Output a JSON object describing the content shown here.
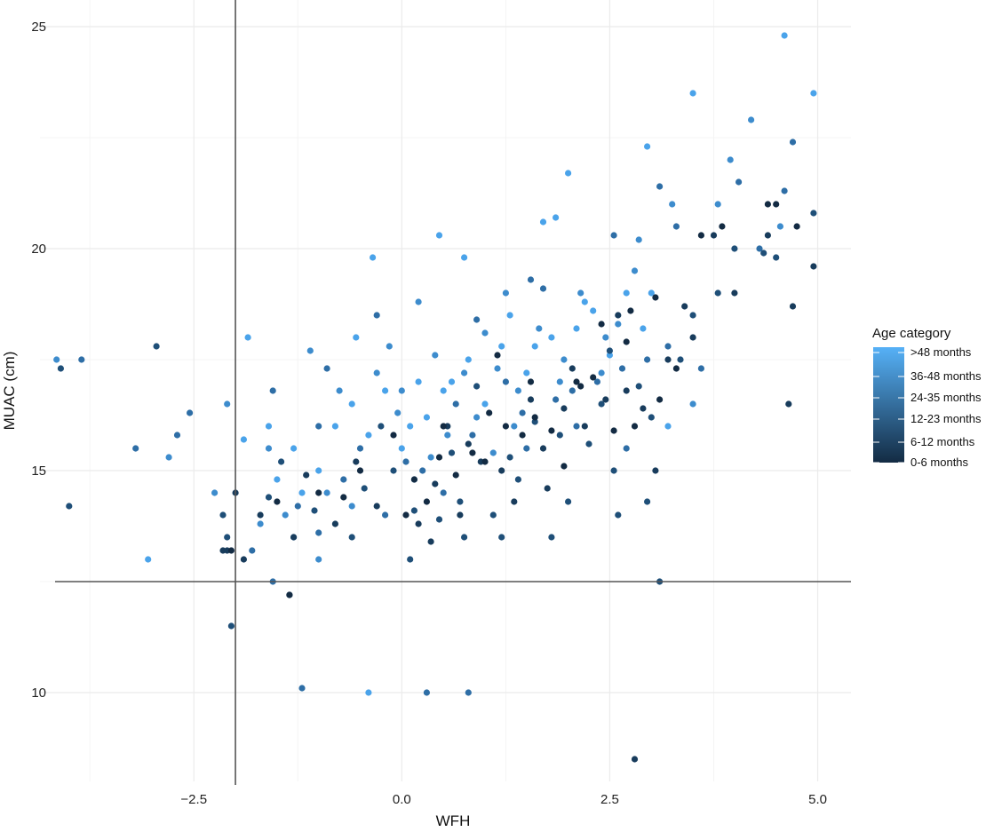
{
  "chart_data": {
    "type": "scatter",
    "xlabel": "WFH",
    "ylabel": "MUAC (cm)",
    "xlim": [
      -4.35,
      5.4
    ],
    "ylim": [
      8.0,
      25.6
    ],
    "x_ticks": [
      -2.5,
      0.0,
      2.5,
      5.0
    ],
    "x_tick_labels": [
      "−2.5",
      "0.0",
      "2.5",
      "5.0"
    ],
    "y_ticks": [
      10,
      15,
      20,
      25
    ],
    "y_tick_labels": [
      "10",
      "15",
      "20",
      "25"
    ],
    "grid": true,
    "reference_lines": {
      "vertical_x": -2.0,
      "horizontal_y": 12.5
    },
    "legend": {
      "title": "Age category",
      "placement": "right",
      "labels": [
        ">48 months",
        "36-48 months",
        "24-35 months",
        "12-23 months",
        "6-12 months",
        "0-6 months"
      ],
      "gradient": [
        "#56b1f7",
        "#132b43"
      ]
    },
    "series": [
      {
        "name": ">48 months",
        "color": "#4aa3ea",
        "points": [
          [
            -3.05,
            13.0
          ],
          [
            -0.4,
            10.0
          ],
          [
            -0.35,
            19.8
          ],
          [
            2.95,
            22.3
          ],
          [
            2.0,
            21.7
          ],
          [
            1.85,
            20.7
          ],
          [
            0.45,
            20.3
          ],
          [
            -1.85,
            18.0
          ],
          [
            -1.6,
            16.0
          ],
          [
            -1.9,
            15.7
          ],
          [
            3.2,
            16.0
          ],
          [
            0.75,
            19.8
          ],
          [
            1.7,
            20.6
          ],
          [
            2.7,
            19.0
          ],
          [
            -0.55,
            18.0
          ],
          [
            3.0,
            19.0
          ],
          [
            -0.6,
            16.5
          ],
          [
            -1.3,
            15.5
          ],
          [
            -0.2,
            16.8
          ],
          [
            0.2,
            17.0
          ],
          [
            0.3,
            16.2
          ],
          [
            0.8,
            17.5
          ],
          [
            1.2,
            17.8
          ],
          [
            1.5,
            17.2
          ],
          [
            2.1,
            18.2
          ],
          [
            2.3,
            18.6
          ],
          [
            -1.0,
            15.0
          ],
          [
            -0.8,
            16.0
          ],
          [
            0.0,
            15.5
          ],
          [
            0.5,
            16.8
          ],
          [
            1.0,
            16.5
          ],
          [
            1.3,
            18.5
          ],
          [
            1.8,
            18.0
          ],
          [
            2.5,
            17.6
          ],
          [
            -1.5,
            14.8
          ],
          [
            -1.2,
            14.5
          ],
          [
            -0.4,
            15.8
          ],
          [
            0.1,
            16.0
          ],
          [
            0.6,
            17.0
          ],
          [
            1.6,
            17.8
          ],
          [
            2.2,
            18.8
          ],
          [
            2.9,
            18.2
          ],
          [
            4.6,
            24.8
          ],
          [
            3.5,
            23.5
          ],
          [
            4.95,
            23.5
          ]
        ]
      },
      {
        "name": "36-48 months",
        "color": "#3d8ccd",
        "points": [
          [
            -4.15,
            17.5
          ],
          [
            -2.1,
            16.5
          ],
          [
            -2.8,
            15.3
          ],
          [
            0.2,
            18.8
          ],
          [
            1.25,
            19.0
          ],
          [
            2.85,
            20.2
          ],
          [
            3.25,
            21.0
          ],
          [
            -0.15,
            17.8
          ],
          [
            -1.4,
            14.0
          ],
          [
            -0.9,
            14.5
          ],
          [
            0.35,
            15.3
          ],
          [
            0.9,
            16.2
          ],
          [
            1.4,
            16.8
          ],
          [
            1.9,
            17.0
          ],
          [
            2.4,
            17.2
          ],
          [
            -1.1,
            17.7
          ],
          [
            -0.75,
            16.8
          ],
          [
            -0.05,
            16.3
          ],
          [
            0.55,
            15.8
          ],
          [
            1.15,
            17.3
          ],
          [
            1.65,
            18.2
          ],
          [
            2.15,
            19.0
          ],
          [
            2.6,
            18.3
          ],
          [
            -1.7,
            13.8
          ],
          [
            -1.3,
            13.5
          ],
          [
            -0.6,
            14.2
          ],
          [
            0.0,
            16.8
          ],
          [
            0.75,
            17.2
          ],
          [
            1.35,
            16.0
          ],
          [
            1.95,
            17.5
          ],
          [
            2.45,
            18.0
          ],
          [
            3.5,
            16.5
          ],
          [
            4.2,
            22.9
          ],
          [
            4.55,
            20.5
          ],
          [
            3.8,
            21.0
          ],
          [
            -1.0,
            13.0
          ],
          [
            0.4,
            17.6
          ],
          [
            1.0,
            18.1
          ],
          [
            2.8,
            19.5
          ],
          [
            3.95,
            22.0
          ],
          [
            -2.25,
            14.5
          ],
          [
            -1.6,
            15.5
          ],
          [
            -0.3,
            17.2
          ],
          [
            0.15,
            14.8
          ],
          [
            1.1,
            15.4
          ]
        ]
      },
      {
        "name": "24-35 months",
        "color": "#2e6ea6",
        "points": [
          [
            -3.85,
            17.5
          ],
          [
            -2.55,
            16.3
          ],
          [
            -3.2,
            15.5
          ],
          [
            -2.7,
            15.8
          ],
          [
            -1.55,
            16.8
          ],
          [
            -1.2,
            10.1
          ],
          [
            0.3,
            10.0
          ],
          [
            0.8,
            10.0
          ],
          [
            -1.55,
            12.5
          ],
          [
            3.1,
            21.4
          ],
          [
            4.05,
            21.5
          ],
          [
            4.6,
            21.3
          ],
          [
            2.55,
            20.3
          ],
          [
            1.55,
            19.3
          ],
          [
            -0.3,
            18.5
          ],
          [
            -1.0,
            16.0
          ],
          [
            -0.5,
            15.5
          ],
          [
            0.25,
            15.0
          ],
          [
            0.85,
            15.8
          ],
          [
            1.45,
            16.3
          ],
          [
            2.05,
            16.8
          ],
          [
            2.65,
            17.3
          ],
          [
            3.2,
            17.8
          ],
          [
            -1.25,
            14.2
          ],
          [
            -0.7,
            14.8
          ],
          [
            0.05,
            15.2
          ],
          [
            0.65,
            16.5
          ],
          [
            1.25,
            17.0
          ],
          [
            1.85,
            16.6
          ],
          [
            2.35,
            17.0
          ],
          [
            2.95,
            17.5
          ],
          [
            3.6,
            17.3
          ],
          [
            -1.8,
            13.2
          ],
          [
            -1.0,
            13.6
          ],
          [
            -0.2,
            14.0
          ],
          [
            0.5,
            14.5
          ],
          [
            1.5,
            15.5
          ],
          [
            2.1,
            16.0
          ],
          [
            2.7,
            15.5
          ],
          [
            3.3,
            20.5
          ],
          [
            4.3,
            20.0
          ],
          [
            4.7,
            22.4
          ],
          [
            -0.9,
            17.3
          ],
          [
            0.9,
            18.4
          ],
          [
            1.7,
            19.1
          ]
        ]
      },
      {
        "name": "12-23 months",
        "color": "#1f4f78",
        "points": [
          [
            -4.1,
            17.3
          ],
          [
            -2.95,
            17.8
          ],
          [
            -4.0,
            14.2
          ],
          [
            -2.1,
            13.5
          ],
          [
            -2.05,
            11.5
          ],
          [
            -1.35,
            12.2
          ],
          [
            -0.6,
            13.5
          ],
          [
            0.1,
            13.0
          ],
          [
            0.75,
            13.5
          ],
          [
            1.2,
            13.5
          ],
          [
            1.8,
            13.5
          ],
          [
            2.6,
            14.0
          ],
          [
            3.1,
            12.5
          ],
          [
            2.95,
            14.3
          ],
          [
            3.8,
            19.0
          ],
          [
            4.35,
            19.9
          ],
          [
            4.95,
            20.8
          ],
          [
            4.0,
            20.0
          ],
          [
            3.5,
            18.5
          ],
          [
            3.0,
            16.2
          ],
          [
            2.4,
            16.5
          ],
          [
            1.9,
            15.8
          ],
          [
            1.3,
            15.3
          ],
          [
            0.7,
            14.3
          ],
          [
            0.15,
            14.1
          ],
          [
            -0.45,
            14.6
          ],
          [
            -1.05,
            14.1
          ],
          [
            -1.6,
            14.4
          ],
          [
            2.0,
            14.3
          ],
          [
            2.55,
            15.0
          ],
          [
            1.1,
            14.0
          ],
          [
            0.45,
            13.9
          ],
          [
            -0.1,
            15.0
          ],
          [
            0.9,
            16.9
          ],
          [
            1.6,
            16.1
          ],
          [
            2.25,
            15.6
          ],
          [
            2.85,
            16.9
          ],
          [
            3.35,
            17.5
          ],
          [
            4.5,
            19.8
          ],
          [
            -2.15,
            14.0
          ],
          [
            -1.45,
            15.2
          ],
          [
            -0.25,
            16.0
          ],
          [
            0.6,
            15.4
          ],
          [
            1.4,
            14.8
          ],
          [
            2.5,
            17.7
          ]
        ]
      },
      {
        "name": "6-12 months",
        "color": "#183c5c",
        "points": [
          [
            -2.15,
            13.2
          ],
          [
            -2.0,
            14.5
          ],
          [
            -1.9,
            13.0
          ],
          [
            2.8,
            8.5
          ],
          [
            3.05,
            15.0
          ],
          [
            3.5,
            18.0
          ],
          [
            4.65,
            16.5
          ],
          [
            4.95,
            19.6
          ],
          [
            4.0,
            19.0
          ],
          [
            3.2,
            17.5
          ],
          [
            2.7,
            16.8
          ],
          [
            2.2,
            16.0
          ],
          [
            1.7,
            15.5
          ],
          [
            1.2,
            15.0
          ],
          [
            0.7,
            14.0
          ],
          [
            0.2,
            13.8
          ],
          [
            -0.3,
            14.2
          ],
          [
            -0.8,
            13.8
          ],
          [
            -1.3,
            13.5
          ],
          [
            1.35,
            14.3
          ],
          [
            0.95,
            15.2
          ],
          [
            0.4,
            14.7
          ],
          [
            1.95,
            16.4
          ],
          [
            2.45,
            16.6
          ],
          [
            3.4,
            18.7
          ],
          [
            4.7,
            18.7
          ],
          [
            -1.7,
            14.0
          ],
          [
            -0.55,
            15.2
          ],
          [
            0.55,
            16.0
          ],
          [
            1.55,
            16.6
          ],
          [
            2.05,
            17.3
          ],
          [
            2.6,
            18.5
          ],
          [
            -2.1,
            13.2
          ],
          [
            0.35,
            13.4
          ],
          [
            1.75,
            14.6
          ],
          [
            2.9,
            16.4
          ],
          [
            3.75,
            20.3
          ],
          [
            4.4,
            20.3
          ],
          [
            -1.15,
            14.9
          ],
          [
            0.8,
            15.6
          ]
        ]
      },
      {
        "name": "0-6 months",
        "color": "#132b43",
        "points": [
          [
            -2.05,
            13.2
          ],
          [
            -1.35,
            12.2
          ],
          [
            0.5,
            16.0
          ],
          [
            1.0,
            15.2
          ],
          [
            1.6,
            16.2
          ],
          [
            2.1,
            17.0
          ],
          [
            2.7,
            17.9
          ],
          [
            3.6,
            20.3
          ],
          [
            4.5,
            21.0
          ],
          [
            -0.5,
            15.0
          ],
          [
            0.15,
            14.8
          ],
          [
            0.65,
            14.9
          ],
          [
            1.25,
            16.0
          ],
          [
            1.8,
            15.9
          ],
          [
            2.3,
            17.1
          ],
          [
            2.8,
            16.0
          ],
          [
            3.3,
            17.3
          ],
          [
            -1.0,
            14.5
          ],
          [
            -0.1,
            15.8
          ],
          [
            0.45,
            15.3
          ],
          [
            1.05,
            16.3
          ],
          [
            1.55,
            17.0
          ],
          [
            2.15,
            16.9
          ],
          [
            2.75,
            18.6
          ],
          [
            3.85,
            20.5
          ],
          [
            -0.7,
            14.4
          ],
          [
            0.3,
            14.3
          ],
          [
            0.85,
            15.4
          ],
          [
            1.45,
            15.8
          ],
          [
            1.95,
            15.1
          ],
          [
            2.55,
            15.9
          ],
          [
            3.1,
            16.6
          ],
          [
            4.4,
            21.0
          ],
          [
            -1.5,
            14.3
          ],
          [
            0.05,
            14.0
          ],
          [
            1.15,
            17.6
          ],
          [
            2.4,
            18.3
          ],
          [
            3.05,
            18.9
          ],
          [
            4.75,
            20.5
          ]
        ]
      }
    ]
  }
}
